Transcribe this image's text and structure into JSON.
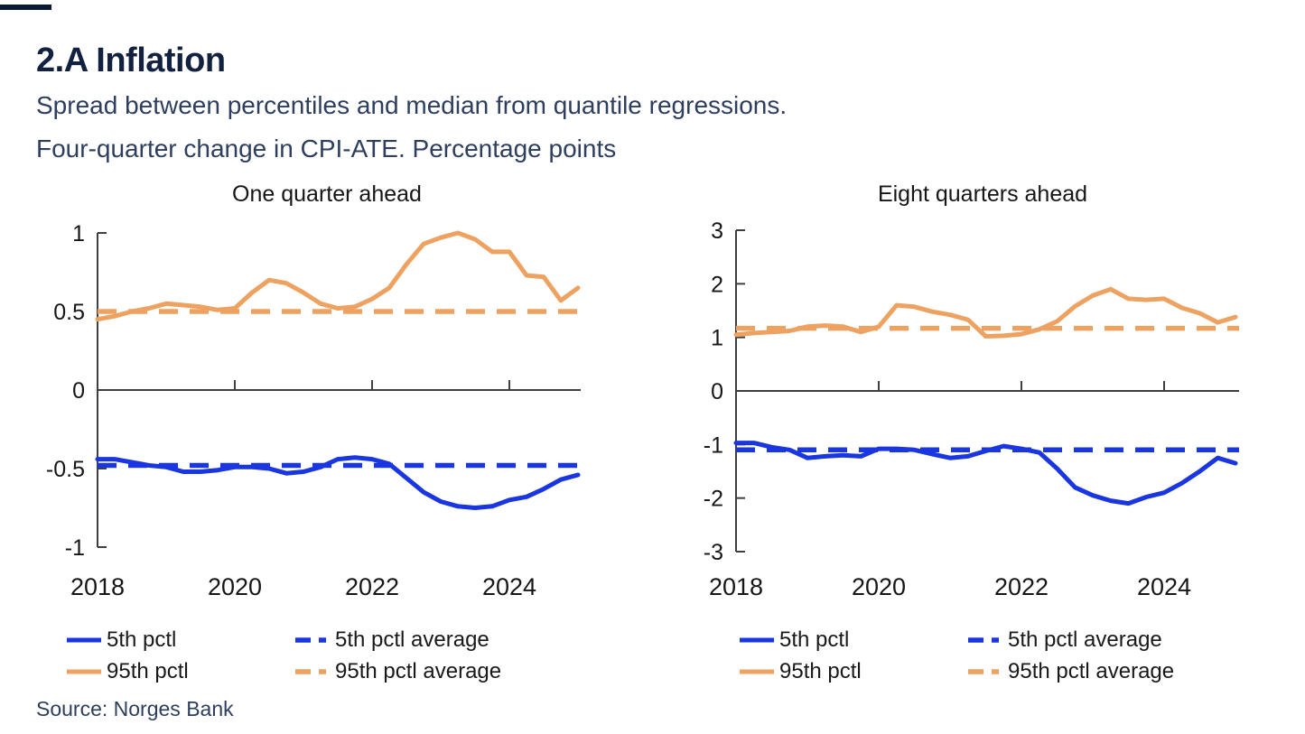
{
  "header": {
    "title": "2.A Inflation",
    "subtitle_line1": "Spread between percentiles and median from quantile regressions.",
    "subtitle_line2": "Four-quarter change in CPI-ATE. Percentage points"
  },
  "source_text": "Source: Norges Bank",
  "colors": {
    "accent_blue": "#1a36e0",
    "accent_orange": "#eea261",
    "title_navy": "#11213f",
    "subtitle_navy": "#2d3e5e",
    "axis_gray": "#3f3f3f",
    "tick_text": "#161616"
  },
  "legend": {
    "items": [
      {
        "label": "5th pctl",
        "style": "solid",
        "color": "accent_blue"
      },
      {
        "label": "5th pctl average",
        "style": "dashed",
        "color": "accent_blue"
      },
      {
        "label": "95th pctl",
        "style": "solid",
        "color": "accent_orange"
      },
      {
        "label": "95th pctl average",
        "style": "dashed",
        "color": "accent_orange"
      }
    ]
  },
  "chart_data": [
    {
      "type": "line",
      "title": "One quarter ahead",
      "x": [
        2018.0,
        2018.25,
        2018.5,
        2018.75,
        2019.0,
        2019.25,
        2019.5,
        2019.75,
        2020.0,
        2020.25,
        2020.5,
        2020.75,
        2021.0,
        2021.25,
        2021.5,
        2021.75,
        2022.0,
        2022.25,
        2022.5,
        2022.75,
        2023.0,
        2023.25,
        2023.5,
        2023.75,
        2024.0,
        2024.25,
        2024.5,
        2024.75,
        2025.0
      ],
      "ylim": [
        -1,
        1
      ],
      "y_ticks": [
        1,
        0.5,
        0,
        -0.5,
        -1
      ],
      "y_tick_labels": [
        "1",
        "0.5",
        "0",
        "-0.5",
        "-1"
      ],
      "x_tick_positions": [
        2018,
        2020,
        2022,
        2024
      ],
      "x_tick_labels": [
        "2018",
        "2020",
        "2022",
        "2024"
      ],
      "grid": false,
      "legend_position": "below",
      "series": [
        {
          "name": "5th pctl",
          "style": "solid",
          "color": "accent_blue",
          "values": [
            -0.44,
            -0.44,
            -0.46,
            -0.48,
            -0.49,
            -0.52,
            -0.52,
            -0.51,
            -0.49,
            -0.49,
            -0.5,
            -0.53,
            -0.52,
            -0.49,
            -0.44,
            -0.43,
            -0.44,
            -0.47,
            -0.56,
            -0.65,
            -0.71,
            -0.74,
            -0.75,
            -0.74,
            -0.7,
            -0.68,
            -0.63,
            -0.57,
            -0.54
          ]
        },
        {
          "name": "95th pctl",
          "style": "solid",
          "color": "accent_orange",
          "values": [
            0.45,
            0.47,
            0.5,
            0.52,
            0.55,
            0.54,
            0.53,
            0.51,
            0.52,
            0.62,
            0.7,
            0.68,
            0.62,
            0.55,
            0.52,
            0.53,
            0.58,
            0.65,
            0.8,
            0.93,
            0.97,
            1.0,
            0.96,
            0.88,
            0.88,
            0.73,
            0.72,
            0.57,
            0.65
          ]
        },
        {
          "name": "5th pctl average",
          "style": "dashed",
          "color": "accent_blue",
          "constant": -0.48
        },
        {
          "name": "95th pctl average",
          "style": "dashed",
          "color": "accent_orange",
          "constant": 0.5
        }
      ]
    },
    {
      "type": "line",
      "title": "Eight quarters ahead",
      "x": [
        2018.0,
        2018.25,
        2018.5,
        2018.75,
        2019.0,
        2019.25,
        2019.5,
        2019.75,
        2020.0,
        2020.25,
        2020.5,
        2020.75,
        2021.0,
        2021.25,
        2021.5,
        2021.75,
        2022.0,
        2022.25,
        2022.5,
        2022.75,
        2023.0,
        2023.25,
        2023.5,
        2023.75,
        2024.0,
        2024.25,
        2024.5,
        2024.75,
        2025.0
      ],
      "ylim": [
        -3,
        3
      ],
      "y_ticks": [
        3,
        2,
        1,
        0,
        -1,
        -2,
        -3
      ],
      "y_tick_labels": [
        "3",
        "2",
        "1",
        "0",
        "-1",
        "-2",
        "-3"
      ],
      "x_tick_positions": [
        2018,
        2020,
        2022,
        2024
      ],
      "x_tick_labels": [
        "2018",
        "2020",
        "2022",
        "2024"
      ],
      "grid": false,
      "legend_position": "below",
      "series": [
        {
          "name": "5th pctl",
          "style": "solid",
          "color": "accent_blue",
          "values": [
            -0.97,
            -0.97,
            -1.05,
            -1.1,
            -1.25,
            -1.22,
            -1.2,
            -1.22,
            -1.08,
            -1.08,
            -1.1,
            -1.18,
            -1.25,
            -1.22,
            -1.12,
            -1.03,
            -1.08,
            -1.15,
            -1.45,
            -1.8,
            -1.95,
            -2.05,
            -2.1,
            -1.98,
            -1.9,
            -1.72,
            -1.5,
            -1.25,
            -1.35
          ]
        },
        {
          "name": "95th pctl",
          "style": "solid",
          "color": "accent_orange",
          "values": [
            1.05,
            1.08,
            1.1,
            1.12,
            1.2,
            1.22,
            1.2,
            1.1,
            1.2,
            1.6,
            1.57,
            1.48,
            1.42,
            1.33,
            1.02,
            1.03,
            1.06,
            1.15,
            1.3,
            1.58,
            1.78,
            1.9,
            1.72,
            1.7,
            1.72,
            1.55,
            1.45,
            1.28,
            1.38
          ]
        },
        {
          "name": "5th pctl average",
          "style": "dashed",
          "color": "accent_blue",
          "constant": -1.1
        },
        {
          "name": "95th pctl average",
          "style": "dashed",
          "color": "accent_orange",
          "constant": 1.17
        }
      ]
    }
  ]
}
